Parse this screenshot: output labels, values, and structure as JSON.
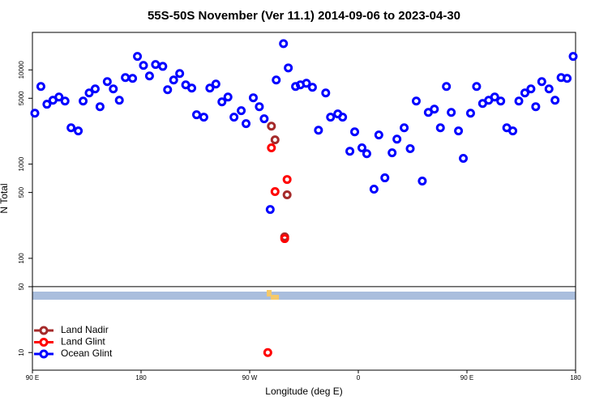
{
  "chart_data": {
    "type": "scatter",
    "title": "55S-50S November (Ver 11.1)   2014-09-06 to 2023-04-30",
    "x_label": "Longitude (deg E)",
    "y_label": "N Total",
    "ylog": true,
    "legend": "bottom-left",
    "xlim": [
      90,
      540
    ],
    "ylim": [
      6.5,
      25000
    ],
    "xticks": [
      {
        "value": 90,
        "label": "90 E"
      },
      180,
      {
        "value": 270,
        "label": "90 W"
      },
      {
        "value": 360,
        "label": "0"
      },
      {
        "value": 450,
        "label": "90 E"
      },
      {
        "value": 540,
        "label": "180"
      }
    ],
    "yticks": [
      10,
      50,
      100,
      500,
      1000,
      5000,
      10000
    ],
    "series": [
      {
        "name": "Land Nadir",
        "color": "#a52a2a",
        "x": [
          288,
          291,
          301,
          299
        ],
        "values": [
          2530,
          1810,
          472,
          169
        ]
      },
      {
        "name": "Land Glint",
        "color": "#ff0000",
        "x": [
          288,
          291,
          301,
          299,
          285
        ],
        "values": [
          1490,
          511,
          687,
          162,
          10
        ]
      },
      {
        "name": "Ocean Glint",
        "color": "#0000ff",
        "x": [
          92,
          97,
          102,
          107,
          112,
          117,
          122,
          128,
          132,
          137,
          142,
          146,
          152,
          157,
          162,
          167,
          173,
          177,
          182,
          187,
          192,
          198,
          202,
          207,
          212,
          217,
          222,
          226,
          232,
          237,
          242,
          247,
          252,
          257,
          263,
          267,
          273,
          278,
          282,
          287,
          292,
          298,
          302,
          308,
          312,
          317,
          322,
          327,
          333,
          337,
          343,
          347,
          353,
          357,
          363,
          367,
          373,
          377,
          382,
          388,
          392,
          398,
          403,
          408,
          413,
          418,
          423,
          428,
          433,
          437,
          443,
          447,
          453,
          458,
          463,
          468,
          473,
          478,
          483,
          488,
          493,
          498,
          503,
          507,
          512,
          518,
          523,
          528,
          533,
          538
        ],
        "values": [
          3470,
          6670,
          4320,
          4760,
          5150,
          4670,
          2430,
          2250,
          4670,
          5690,
          6280,
          4070,
          7510,
          6280,
          4760,
          8290,
          8130,
          13900,
          11150,
          8630,
          11400,
          10900,
          6160,
          7810,
          9150,
          6940,
          6410,
          3340,
          3150,
          6410,
          7080,
          4580,
          5150,
          3150,
          3690,
          2690,
          5060,
          4070,
          3030,
          330,
          7810,
          19000,
          10500,
          6670,
          6940,
          7210,
          6540,
          2290,
          5690,
          3150,
          3410,
          3150,
          1370,
          2200,
          1490,
          1290,
          542,
          2040,
          715,
          1320,
          1840,
          2430,
          1460,
          4670,
          661,
          3540,
          3830,
          2430,
          6670,
          3540,
          2250,
          1150,
          3470,
          6670,
          4400,
          4760,
          5150,
          4670,
          2430,
          2250,
          4670,
          5690,
          6280,
          4070,
          7510,
          6280,
          4760,
          8290,
          8130,
          13900
        ]
      }
    ]
  }
}
